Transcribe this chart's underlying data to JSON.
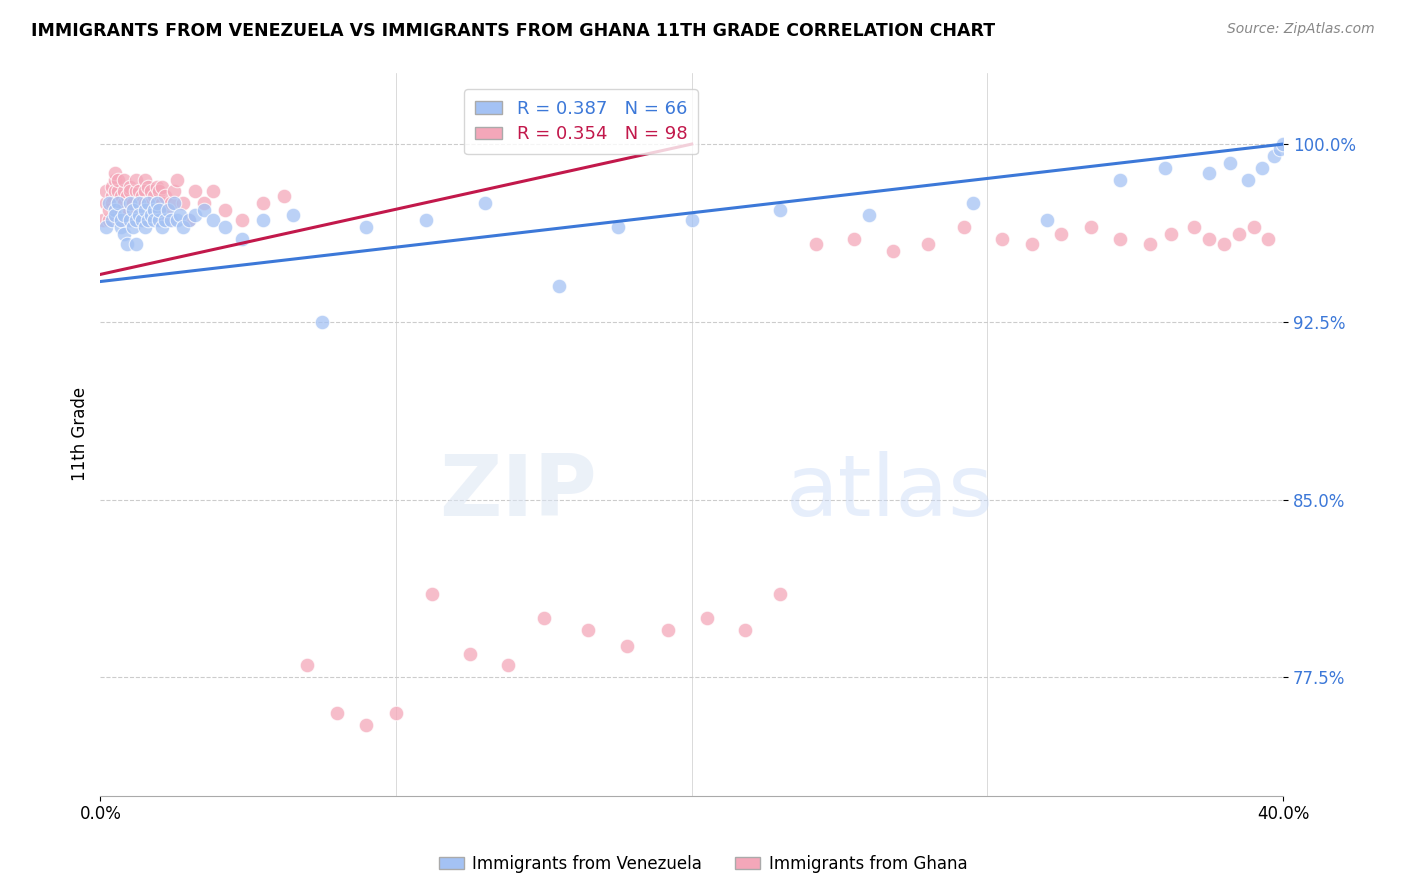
{
  "title": "IMMIGRANTS FROM VENEZUELA VS IMMIGRANTS FROM GHANA 11TH GRADE CORRELATION CHART",
  "source": "Source: ZipAtlas.com",
  "ylabel": "11th Grade",
  "ytick_labels": [
    "100.0%",
    "92.5%",
    "85.0%",
    "77.5%"
  ],
  "ytick_values": [
    1.0,
    0.925,
    0.85,
    0.775
  ],
  "xlim": [
    0.0,
    0.4
  ],
  "ylim": [
    0.725,
    1.03
  ],
  "legend_blue_r": "R = 0.387",
  "legend_blue_n": "N = 66",
  "legend_pink_r": "R = 0.354",
  "legend_pink_n": "N = 98",
  "legend_label_blue": "Immigrants from Venezuela",
  "legend_label_pink": "Immigrants from Ghana",
  "blue_color": "#a4c2f4",
  "pink_color": "#f4a7b9",
  "blue_line_color": "#3c78d8",
  "pink_line_color": "#c2184b",
  "watermark_zip": "ZIP",
  "watermark_atlas": "atlas",
  "blue_scatter_x": [
    0.002,
    0.003,
    0.004,
    0.005,
    0.005,
    0.006,
    0.007,
    0.007,
    0.008,
    0.008,
    0.009,
    0.01,
    0.01,
    0.011,
    0.011,
    0.012,
    0.012,
    0.013,
    0.013,
    0.014,
    0.015,
    0.015,
    0.016,
    0.016,
    0.017,
    0.018,
    0.018,
    0.019,
    0.02,
    0.02,
    0.021,
    0.022,
    0.023,
    0.024,
    0.025,
    0.026,
    0.027,
    0.028,
    0.03,
    0.032,
    0.035,
    0.038,
    0.042,
    0.048,
    0.055,
    0.065,
    0.075,
    0.09,
    0.11,
    0.13,
    0.155,
    0.175,
    0.2,
    0.23,
    0.26,
    0.295,
    0.32,
    0.345,
    0.36,
    0.375,
    0.382,
    0.388,
    0.393,
    0.397,
    0.399,
    0.4
  ],
  "blue_scatter_y": [
    0.965,
    0.975,
    0.968,
    0.972,
    0.97,
    0.975,
    0.965,
    0.968,
    0.962,
    0.97,
    0.958,
    0.975,
    0.968,
    0.972,
    0.965,
    0.958,
    0.968,
    0.975,
    0.97,
    0.968,
    0.972,
    0.965,
    0.975,
    0.968,
    0.97,
    0.972,
    0.968,
    0.975,
    0.968,
    0.972,
    0.965,
    0.968,
    0.972,
    0.968,
    0.975,
    0.968,
    0.97,
    0.965,
    0.968,
    0.97,
    0.972,
    0.968,
    0.965,
    0.96,
    0.968,
    0.97,
    0.925,
    0.965,
    0.968,
    0.975,
    0.94,
    0.965,
    0.968,
    0.972,
    0.97,
    0.975,
    0.968,
    0.985,
    0.99,
    0.988,
    0.992,
    0.985,
    0.99,
    0.995,
    0.998,
    1.0
  ],
  "pink_scatter_x": [
    0.001,
    0.002,
    0.002,
    0.003,
    0.003,
    0.004,
    0.004,
    0.004,
    0.005,
    0.005,
    0.005,
    0.006,
    0.006,
    0.006,
    0.007,
    0.007,
    0.007,
    0.008,
    0.008,
    0.008,
    0.009,
    0.009,
    0.009,
    0.01,
    0.01,
    0.01,
    0.011,
    0.011,
    0.012,
    0.012,
    0.012,
    0.013,
    0.013,
    0.013,
    0.014,
    0.014,
    0.015,
    0.015,
    0.015,
    0.016,
    0.016,
    0.017,
    0.017,
    0.018,
    0.018,
    0.019,
    0.019,
    0.02,
    0.02,
    0.021,
    0.021,
    0.022,
    0.022,
    0.023,
    0.024,
    0.025,
    0.026,
    0.028,
    0.03,
    0.032,
    0.035,
    0.038,
    0.042,
    0.048,
    0.055,
    0.062,
    0.07,
    0.08,
    0.09,
    0.1,
    0.112,
    0.125,
    0.138,
    0.15,
    0.165,
    0.178,
    0.192,
    0.205,
    0.218,
    0.23,
    0.242,
    0.255,
    0.268,
    0.28,
    0.292,
    0.305,
    0.315,
    0.325,
    0.335,
    0.345,
    0.355,
    0.362,
    0.37,
    0.375,
    0.38,
    0.385,
    0.39,
    0.395
  ],
  "pink_scatter_y": [
    0.968,
    0.975,
    0.98,
    0.968,
    0.972,
    0.978,
    0.982,
    0.975,
    0.985,
    0.98,
    0.988,
    0.975,
    0.98,
    0.985,
    0.972,
    0.968,
    0.978,
    0.975,
    0.98,
    0.985,
    0.968,
    0.972,
    0.978,
    0.982,
    0.975,
    0.98,
    0.968,
    0.975,
    0.972,
    0.98,
    0.985,
    0.975,
    0.98,
    0.968,
    0.978,
    0.975,
    0.985,
    0.98,
    0.975,
    0.982,
    0.968,
    0.975,
    0.98,
    0.972,
    0.978,
    0.982,
    0.975,
    0.968,
    0.98,
    0.975,
    0.982,
    0.978,
    0.972,
    0.968,
    0.975,
    0.98,
    0.985,
    0.975,
    0.968,
    0.98,
    0.975,
    0.98,
    0.972,
    0.968,
    0.975,
    0.978,
    0.78,
    0.76,
    0.755,
    0.76,
    0.81,
    0.785,
    0.78,
    0.8,
    0.795,
    0.788,
    0.795,
    0.8,
    0.795,
    0.81,
    0.958,
    0.96,
    0.955,
    0.958,
    0.965,
    0.96,
    0.958,
    0.962,
    0.965,
    0.96,
    0.958,
    0.962,
    0.965,
    0.96,
    0.958,
    0.962,
    0.965,
    0.96
  ],
  "blue_trendline_x": [
    0.0,
    0.4
  ],
  "blue_trendline_y": [
    0.942,
    1.0
  ],
  "pink_trendline_x": [
    0.0,
    0.2
  ],
  "pink_trendline_y": [
    0.945,
    1.0
  ]
}
